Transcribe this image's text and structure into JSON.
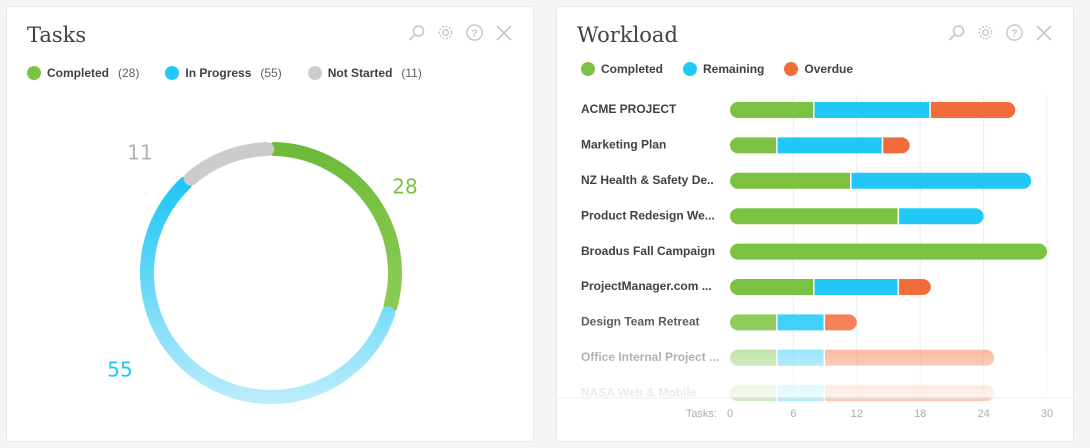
{
  "colors": {
    "completed": "#7cc242",
    "in_progress": "#22c8f5",
    "remaining": "#22c8f5",
    "not_started": "#cccccc",
    "overdue": "#f26b3a"
  },
  "tasks": {
    "title": "Tasks",
    "tools": [
      "search-icon",
      "gear-icon",
      "help-icon",
      "close-icon"
    ],
    "legend": [
      {
        "label": "Completed",
        "count": "(28)",
        "color": "#7cc242"
      },
      {
        "label": "In Progress",
        "count": "(55)",
        "color": "#22c8f5"
      },
      {
        "label": "Not Started",
        "count": "(11)",
        "color": "#cccccc"
      }
    ]
  },
  "workload": {
    "title": "Workload",
    "tools": [
      "search-icon",
      "gear-icon",
      "help-icon",
      "close-icon"
    ],
    "legend": [
      {
        "label": "Completed",
        "color": "#7cc242"
      },
      {
        "label": "Remaining",
        "color": "#22c8f5"
      },
      {
        "label": "Overdue",
        "color": "#f26b3a"
      }
    ],
    "axis_label": "Tasks:"
  },
  "chart_data": [
    {
      "type": "pie",
      "style": "donut",
      "labels": [
        "Completed",
        "In Progress",
        "Not Started"
      ],
      "values": [
        28,
        55,
        11
      ],
      "data_labels": [
        "28",
        "55",
        "11"
      ],
      "colors": [
        "#7cc242",
        "#22c8f5",
        "#cccccc"
      ]
    },
    {
      "type": "bar",
      "orientation": "horizontal",
      "stacked": true,
      "categories": [
        "ACME PROJECT",
        "Marketing Plan",
        "NZ Health & Safety De..",
        "Product Redesign We...",
        "Broadus Fall Campaign",
        "ProjectManager.com ...",
        "Design Team Retreat",
        "Office Internal Project ...",
        "NASA Web & Mobile"
      ],
      "series": [
        {
          "name": "Completed",
          "color": "#7cc242",
          "values": [
            8,
            4.5,
            11.5,
            16,
            30,
            8,
            4.5,
            4.5,
            4.5
          ]
        },
        {
          "name": "Remaining",
          "color": "#22c8f5",
          "values": [
            11,
            10,
            17,
            8,
            0,
            8,
            4.5,
            4.5,
            4.5
          ]
        },
        {
          "name": "Overdue",
          "color": "#f26b3a",
          "values": [
            8,
            2.5,
            0,
            0,
            0,
            3,
            3,
            16,
            16
          ]
        }
      ],
      "xlabel": "Tasks:",
      "xticks": [
        0,
        6,
        12,
        18,
        24,
        30
      ],
      "xlim": [
        0,
        30
      ],
      "grid": true,
      "legend": "top-left"
    }
  ]
}
